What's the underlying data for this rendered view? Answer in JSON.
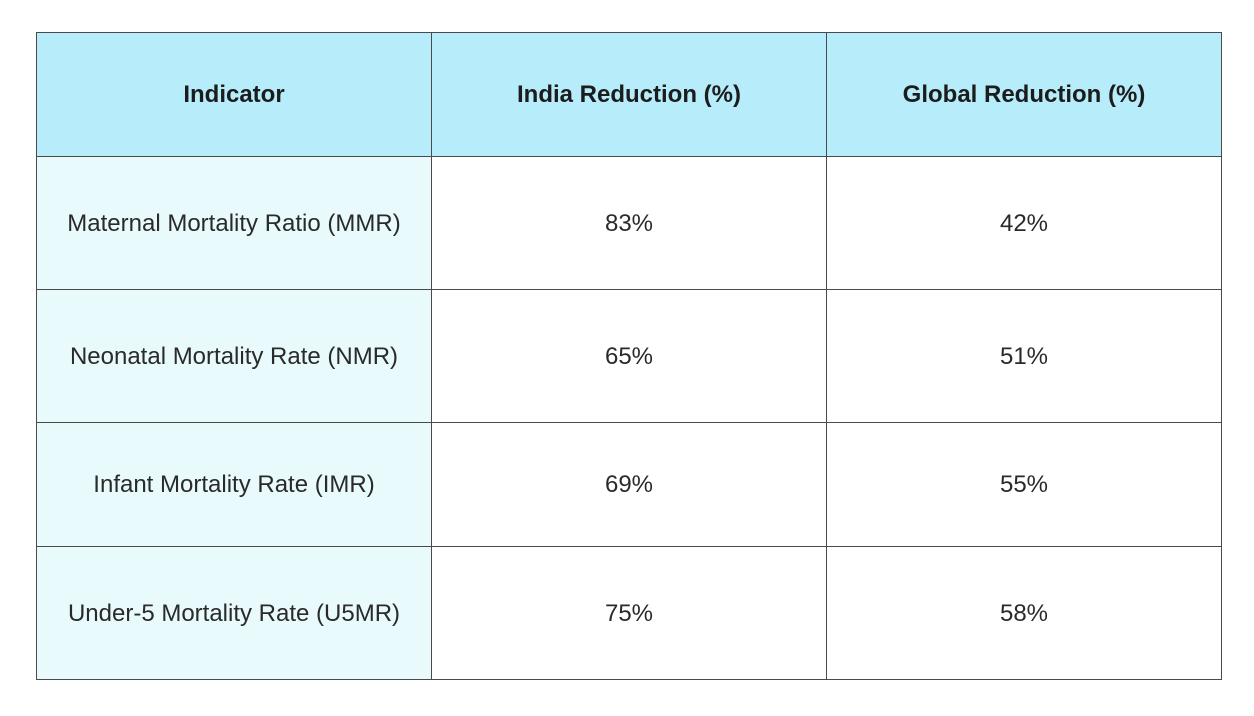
{
  "chart_data": {
    "type": "table",
    "columns": [
      "Indicator",
      "India Reduction (%)",
      "Global Reduction (%)"
    ],
    "rows": [
      [
        "Maternal Mortality Ratio (MMR)",
        "83%",
        "42%"
      ],
      [
        "Neonatal Mortality Rate (NMR)",
        "65%",
        "51%"
      ],
      [
        "Infant Mortality Rate (IMR)",
        "69%",
        "55%"
      ],
      [
        "Under-5 Mortality Rate (U5MR)",
        "75%",
        "58%"
      ]
    ],
    "values": {
      "India Reduction (%)": [
        83,
        65,
        69,
        75
      ],
      "Global Reduction (%)": [
        42,
        51,
        55,
        58
      ]
    }
  },
  "colors": {
    "header_background": "#b7ecfa",
    "indicator_column_background": "#e9fafd",
    "border": "#4a4a4a"
  }
}
